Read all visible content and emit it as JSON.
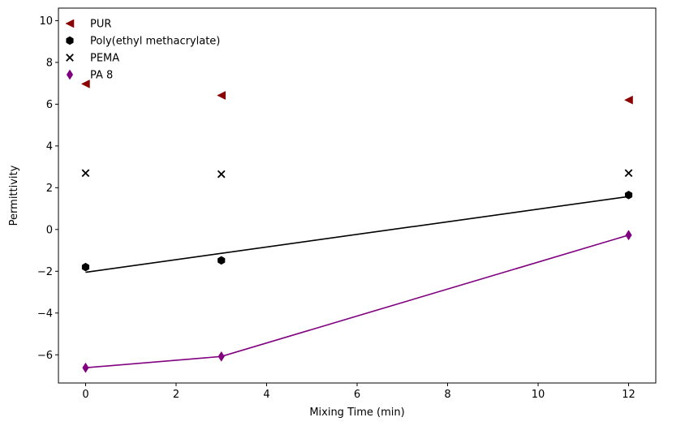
{
  "chart_data": {
    "type": "scatter",
    "xlabel": "Mixing Time (min)",
    "ylabel": "Permittivity",
    "xlim": [
      -0.6,
      12.6
    ],
    "ylim": [
      -7.35,
      10.6
    ],
    "xticks": [
      0,
      2,
      4,
      6,
      8,
      10,
      12
    ],
    "yticks": [
      -6,
      -4,
      -2,
      0,
      2,
      4,
      6,
      8,
      10
    ],
    "grid": false,
    "legend_position": "top-left",
    "series": [
      {
        "name": "PUR",
        "marker": "triangle-left",
        "color": "#8b0000",
        "x": [
          0,
          3,
          12
        ],
        "y": [
          6.97,
          6.42,
          6.2
        ],
        "line": null
      },
      {
        "name": "Poly(ethyl methacrylate)",
        "marker": "hexagon",
        "color": "#000000",
        "x": [
          0,
          3,
          12
        ],
        "y": [
          -1.8,
          -1.48,
          1.65
        ],
        "line": {
          "x": [
            0,
            12
          ],
          "y": [
            -2.05,
            1.58
          ],
          "color": "#000000"
        }
      },
      {
        "name": "PEMA",
        "marker": "x",
        "color": "#000000",
        "x": [
          0,
          3,
          12
        ],
        "y": [
          2.7,
          2.65,
          2.7
        ],
        "line": null
      },
      {
        "name": "PA 8",
        "marker": "thin-diamond",
        "color": "#800080",
        "x": [
          0,
          3,
          12
        ],
        "y": [
          -6.62,
          -6.08,
          -0.27
        ],
        "line": {
          "x": [
            0,
            3,
            12
          ],
          "y": [
            -6.62,
            -6.08,
            -0.27
          ],
          "color": "#800080"
        }
      }
    ]
  }
}
